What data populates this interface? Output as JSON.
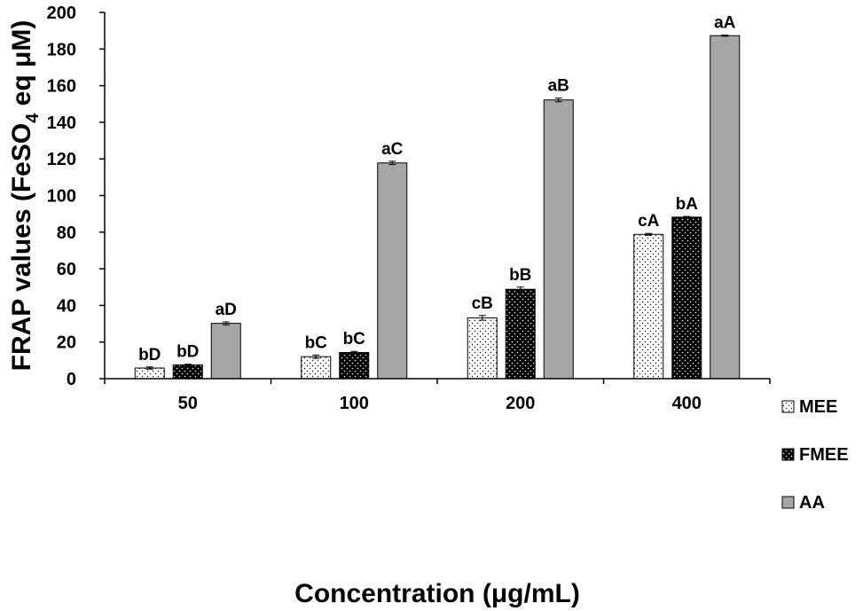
{
  "chart_data": {
    "type": "bar",
    "title": "",
    "xlabel": "Concentration (μg/mL)",
    "ylabel": {
      "prefix": "FRAP values (FeSO",
      "subscript": "4",
      "suffix": " eq μM)"
    },
    "ylim": [
      0,
      200
    ],
    "yticks": [
      0,
      20,
      40,
      60,
      80,
      100,
      120,
      140,
      160,
      180,
      200
    ],
    "categories": [
      "50",
      "100",
      "200",
      "400"
    ],
    "series": [
      {
        "name": "MEE",
        "values": [
          5.8,
          12.0,
          33.2,
          78.8
        ],
        "errors": [
          0.6,
          0.9,
          1.3,
          0.5
        ],
        "labels": [
          "bD",
          "bC",
          "cB",
          "cA"
        ],
        "color": "#ffffff"
      },
      {
        "name": "FMEE",
        "values": [
          7.5,
          14.3,
          48.8,
          88.2
        ],
        "errors": [
          0.4,
          0.6,
          1.2,
          0.4
        ],
        "labels": [
          "bD",
          "bC",
          "bB",
          "bA"
        ],
        "color": "#000000"
      },
      {
        "name": "AA",
        "values": [
          30.2,
          117.8,
          152.2,
          187.3
        ],
        "errors": [
          0.8,
          0.9,
          1.0,
          0.3
        ],
        "labels": [
          "aD",
          "aC",
          "aB",
          "aA"
        ],
        "color": "#a6a6a6"
      }
    ],
    "legend_position": "right"
  }
}
